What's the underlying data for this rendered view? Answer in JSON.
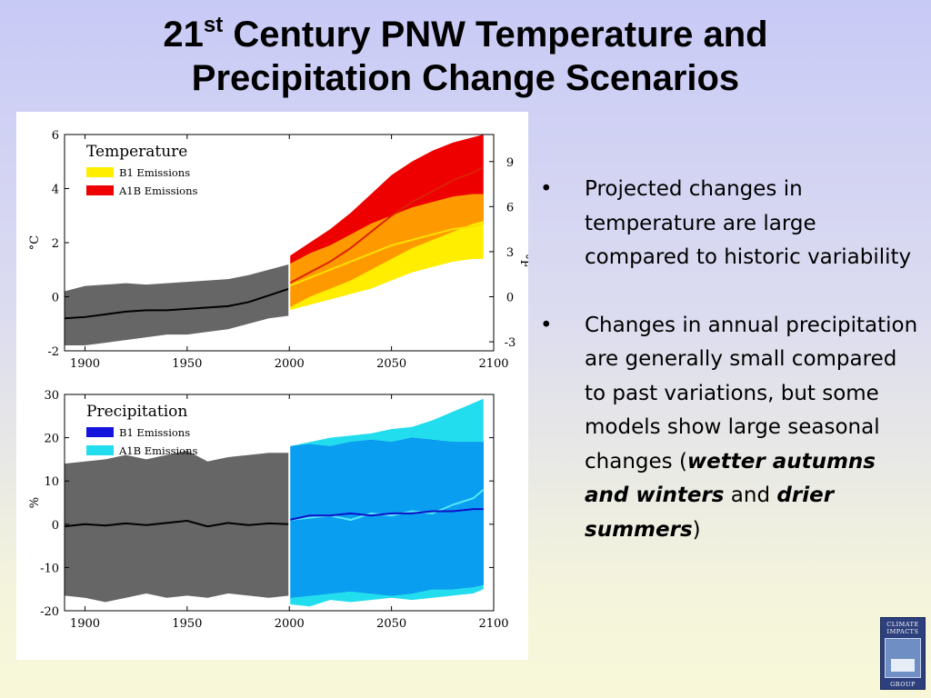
{
  "slide": {
    "title_prefix": "21",
    "title_sup": "st",
    "title_rest": " Century PNW Temperature and",
    "title_line2": "Precipitation Change Scenarios"
  },
  "bullets": {
    "b1": "Projected changes in temperature are large compared to historic variability",
    "b2_a": "Changes in annual precipitation are generally small compared to past variations, but some models show large seasonal changes (",
    "b2_b": "wetter autumns and winters",
    "b2_c": " and ",
    "b2_d": "drier summers",
    "b2_e": ")",
    "bullet_symbol": "•"
  },
  "logo": {
    "line1": "CLIMATE",
    "line2": "IMPACTS",
    "line3": "GROUP"
  },
  "chart_data": [
    {
      "type": "area",
      "title": "Temperature",
      "ylabel": "°C",
      "y2label": "°F",
      "xlim": [
        1890,
        2100
      ],
      "ylim": [
        -2,
        6
      ],
      "x_ticks": [
        1900,
        1950,
        2000,
        2050,
        2100
      ],
      "y_ticks": [
        -2,
        0,
        2,
        4,
        6
      ],
      "y2_ticks": [
        -3,
        0,
        3,
        6,
        9
      ],
      "legend": [
        {
          "name": "B1 Emissions",
          "color": "#ffee00"
        },
        {
          "name": "A1B Emissions",
          "color": "#ee0000"
        }
      ],
      "historical": {
        "color": "#666666",
        "x": [
          1890,
          1900,
          1910,
          1920,
          1930,
          1940,
          1950,
          1960,
          1970,
          1980,
          1990,
          2000
        ],
        "low": [
          -1.8,
          -1.8,
          -1.7,
          -1.6,
          -1.5,
          -1.4,
          -1.4,
          -1.3,
          -1.2,
          -1.0,
          -0.8,
          -0.7
        ],
        "mean": [
          -0.8,
          -0.75,
          -0.65,
          -0.55,
          -0.5,
          -0.5,
          -0.45,
          -0.4,
          -0.35,
          -0.2,
          0.05,
          0.3
        ],
        "high": [
          0.2,
          0.4,
          0.45,
          0.5,
          0.45,
          0.5,
          0.55,
          0.6,
          0.65,
          0.8,
          1.0,
          1.2
        ]
      },
      "scenarios": [
        {
          "name": "A1B Emissions",
          "color": "#ee0000",
          "x": [
            2000,
            2010,
            2020,
            2030,
            2040,
            2050,
            2060,
            2070,
            2080,
            2090,
            2095
          ],
          "low": [
            -0.4,
            0.0,
            0.3,
            0.6,
            1.0,
            1.4,
            1.8,
            2.1,
            2.4,
            2.7,
            2.8
          ],
          "mean": [
            0.5,
            0.9,
            1.3,
            1.8,
            2.4,
            3.0,
            3.5,
            3.9,
            4.3,
            4.6,
            4.8
          ],
          "high": [
            1.5,
            2.0,
            2.5,
            3.1,
            3.8,
            4.5,
            5.0,
            5.4,
            5.7,
            5.9,
            6.0
          ]
        },
        {
          "name": "B1 Emissions",
          "color": "#ffee00",
          "x": [
            2000,
            2010,
            2020,
            2030,
            2040,
            2050,
            2060,
            2070,
            2080,
            2090,
            2095
          ],
          "low": [
            -0.5,
            -0.3,
            -0.1,
            0.1,
            0.3,
            0.6,
            0.9,
            1.1,
            1.3,
            1.4,
            1.4
          ],
          "mean": [
            0.4,
            0.7,
            1.0,
            1.3,
            1.6,
            1.9,
            2.1,
            2.3,
            2.5,
            2.6,
            2.7
          ],
          "high": [
            1.2,
            1.6,
            1.9,
            2.3,
            2.7,
            3.0,
            3.3,
            3.5,
            3.7,
            3.8,
            3.8
          ]
        }
      ]
    },
    {
      "type": "area",
      "title": "Precipitation",
      "ylabel": "%",
      "xlim": [
        1890,
        2100
      ],
      "ylim": [
        -20,
        30
      ],
      "x_ticks": [
        1900,
        1950,
        2000,
        2050,
        2100
      ],
      "y_ticks": [
        -20,
        -10,
        0,
        10,
        20,
        30
      ],
      "legend": [
        {
          "name": "B1 Emissions",
          "color": "#1414dc"
        },
        {
          "name": "A1B Emissions",
          "color": "#22ddee"
        }
      ],
      "historical": {
        "color": "#666666",
        "x": [
          1890,
          1900,
          1910,
          1920,
          1930,
          1940,
          1950,
          1960,
          1970,
          1980,
          1990,
          2000
        ],
        "low": [
          -16.5,
          -17,
          -18,
          -17,
          -16,
          -17,
          -16.5,
          -17,
          -16,
          -16.5,
          -17,
          -16.5
        ],
        "mean": [
          -0.5,
          0,
          -0.3,
          0.2,
          -0.2,
          0.3,
          0.8,
          -0.5,
          0.3,
          -0.2,
          0.2,
          0
        ],
        "high": [
          14,
          14.5,
          15,
          16,
          15,
          16,
          17,
          14.5,
          15.5,
          16,
          16.5,
          16.5
        ]
      },
      "scenarios": [
        {
          "name": "A1B Emissions",
          "color": "#22ddee",
          "x": [
            2000,
            2010,
            2020,
            2030,
            2040,
            2050,
            2060,
            2070,
            2080,
            2090,
            2095
          ],
          "low": [
            -18.5,
            -19,
            -17.5,
            -18,
            -17.5,
            -17,
            -17.5,
            -17,
            -16.5,
            -16,
            -15
          ],
          "mean": [
            1,
            1.5,
            2,
            1,
            2.5,
            2,
            3,
            2.5,
            4.5,
            6,
            8
          ],
          "high": [
            18,
            19,
            20,
            20.5,
            21,
            22,
            22.5,
            24,
            26,
            28,
            29
          ]
        },
        {
          "name": "B1 Emissions",
          "color": "#1414dc",
          "x": [
            2000,
            2010,
            2020,
            2030,
            2040,
            2050,
            2060,
            2070,
            2080,
            2090,
            2095
          ],
          "low": [
            -17,
            -16.5,
            -16,
            -15.5,
            -16,
            -16.5,
            -16,
            -15,
            -15,
            -14.5,
            -14
          ],
          "mean": [
            1,
            2,
            2,
            2.5,
            2,
            2.5,
            2.5,
            3,
            3,
            3.5,
            3.5
          ],
          "high": [
            18,
            18.5,
            18,
            19,
            19.5,
            19,
            20,
            19.5,
            19,
            19,
            19
          ]
        }
      ]
    }
  ]
}
